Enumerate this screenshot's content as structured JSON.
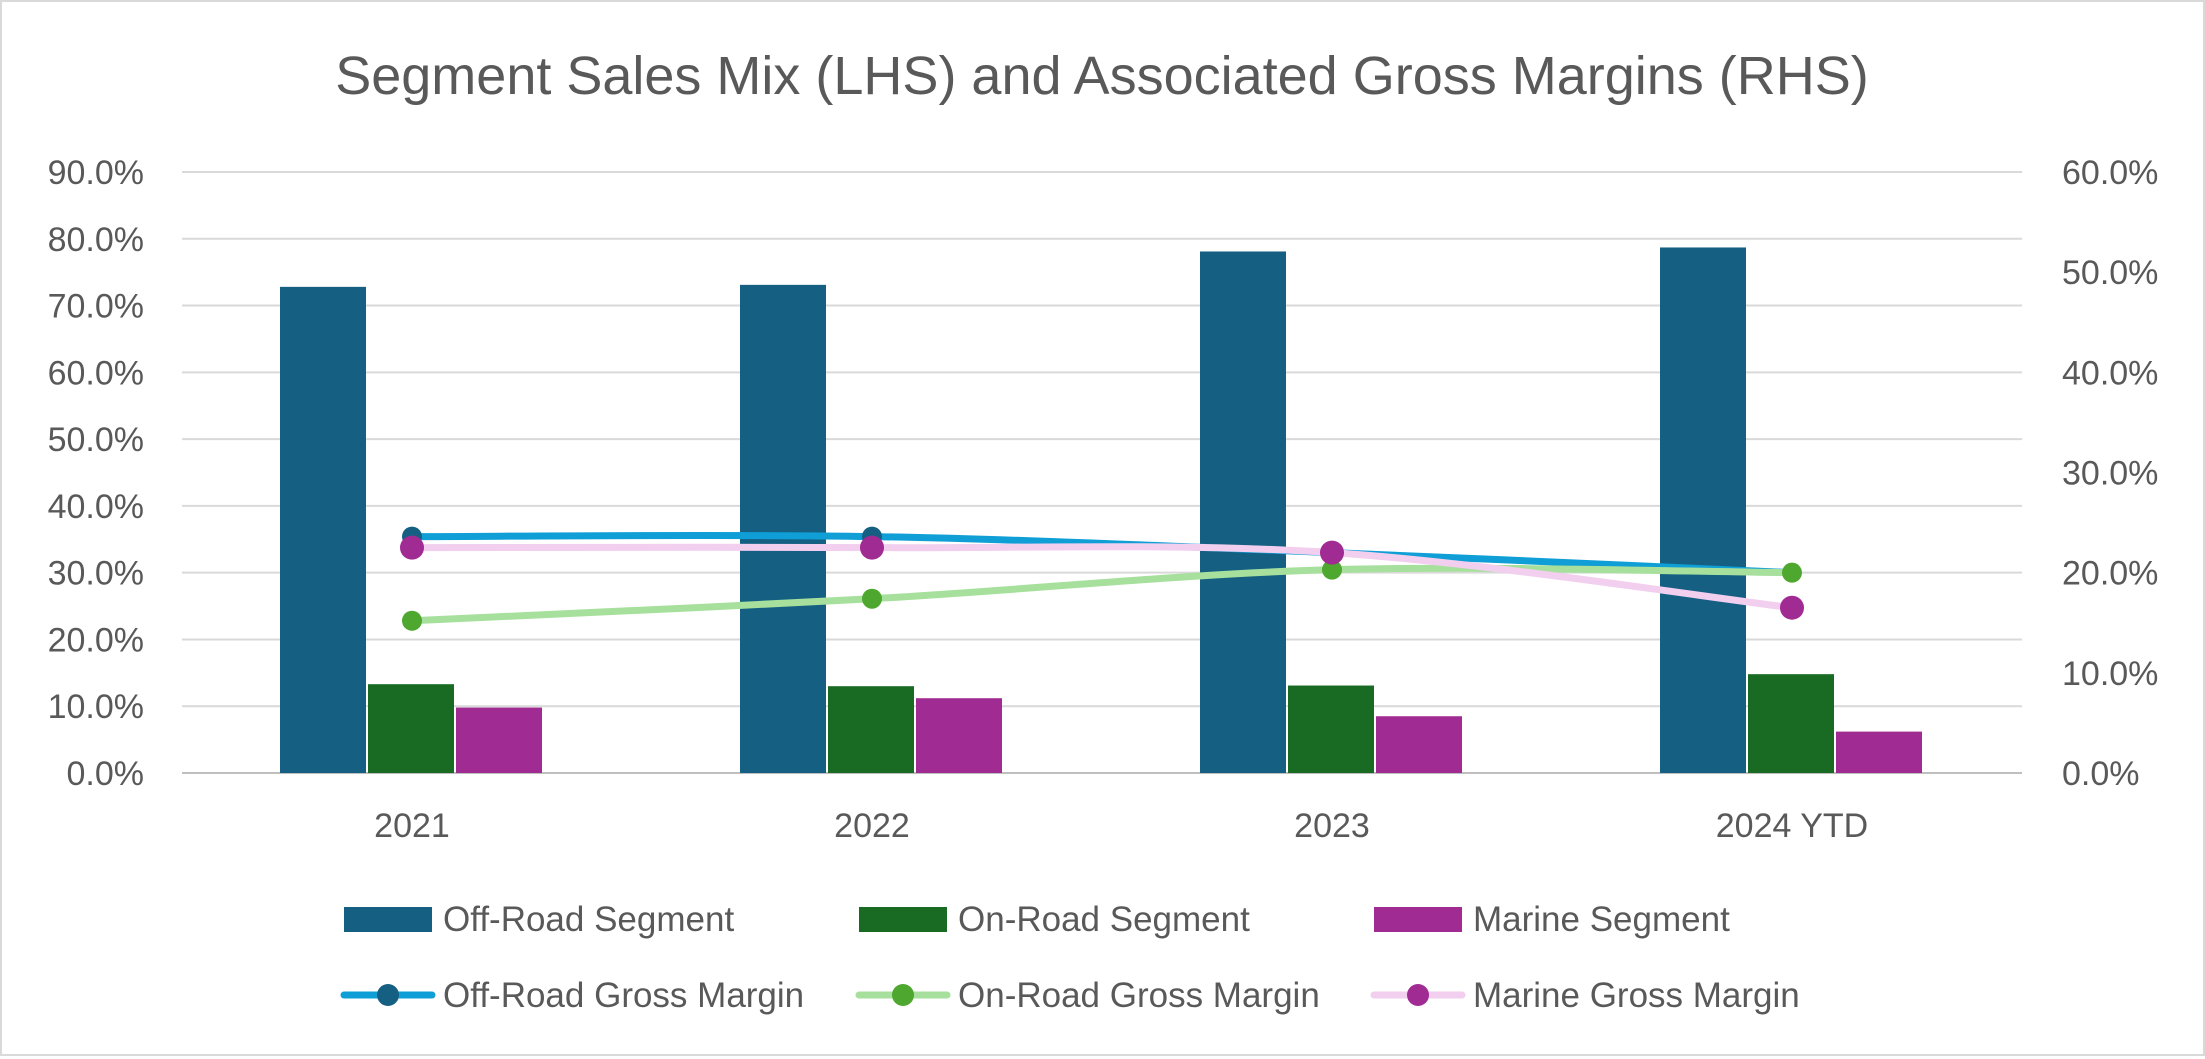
{
  "chart_data": {
    "type": "bar+line (dual axis)",
    "title": "Segment Sales Mix (LHS) and Associated Gross Margins (RHS)",
    "categories": [
      "2021",
      "2022",
      "2023",
      "2024 YTD"
    ],
    "left_axis": {
      "ylim": [
        0,
        0.9
      ],
      "ticks": [
        0,
        0.1,
        0.2,
        0.3,
        0.4,
        0.5,
        0.6,
        0.7,
        0.8,
        0.9
      ],
      "tick_labels": [
        "0.0%",
        "10.0%",
        "20.0%",
        "30.0%",
        "40.0%",
        "50.0%",
        "60.0%",
        "70.0%",
        "80.0%",
        "90.0%"
      ]
    },
    "right_axis": {
      "ylim": [
        0,
        0.6
      ],
      "ticks": [
        0,
        0.1,
        0.2,
        0.3,
        0.4,
        0.5,
        0.6
      ],
      "tick_labels": [
        "0.0%",
        "10.0%",
        "20.0%",
        "30.0%",
        "40.0%",
        "50.0%",
        "60.0%"
      ]
    },
    "grid": true,
    "legend_position": "bottom",
    "bar_series": [
      {
        "name": "Off-Road Segment",
        "axis": "left",
        "color": "#156082",
        "values": [
          0.728,
          0.731,
          0.781,
          0.787
        ]
      },
      {
        "name": "On-Road Segment",
        "axis": "left",
        "color": "#196B24",
        "values": [
          0.133,
          0.13,
          0.131,
          0.148
        ]
      },
      {
        "name": "Marine Segment",
        "axis": "left",
        "color": "#A02B93",
        "values": [
          0.098,
          0.112,
          0.085,
          0.062
        ]
      }
    ],
    "line_series": [
      {
        "name": "Off-Road Gross Margin",
        "axis": "right",
        "color": "#0F9ED5",
        "marker_color": "#156082",
        "values": [
          0.236,
          0.236,
          null,
          null
        ]
      },
      {
        "name": "On-Road Gross Margin",
        "axis": "right",
        "color": "#A6E09C",
        "marker_color": "#4EA72E",
        "values": [
          0.152,
          0.174,
          0.203,
          0.2
        ]
      },
      {
        "name": "Marine Gross Margin",
        "axis": "right",
        "color": "#F2CEEF",
        "marker_color": "#A02B93",
        "values": [
          0.225,
          0.225,
          0.22,
          0.165
        ]
      }
    ],
    "line_path_values": {
      "Off-Road Gross Margin": [
        0.236,
        0.236,
        0.22,
        0.2
      ]
    }
  }
}
